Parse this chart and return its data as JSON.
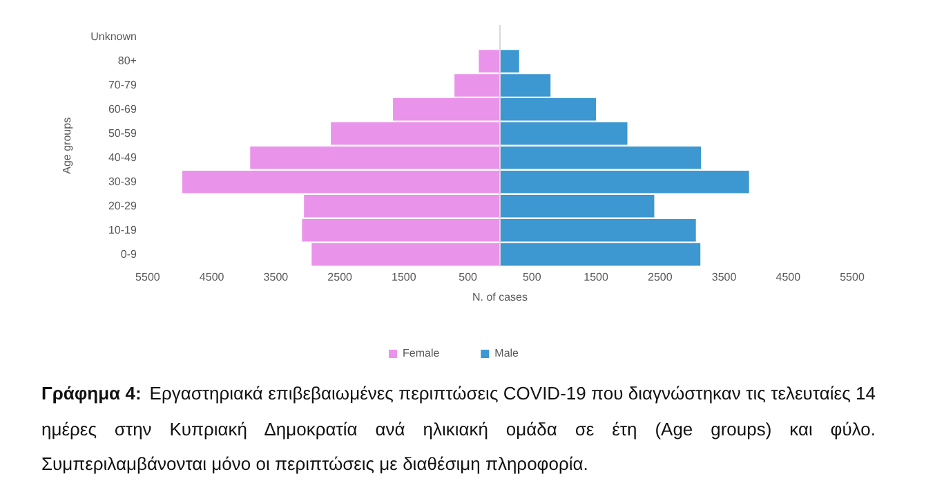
{
  "chart_data": {
    "type": "bar",
    "orientation": "horizontal",
    "stacked": true,
    "categories": [
      "Unknown",
      "80+",
      "70-79",
      "60-69",
      "50-59",
      "40-49",
      "30-39",
      "20-29",
      "10-19",
      "0-9"
    ],
    "series": [
      {
        "name": "Female",
        "color": "#ea93ea",
        "values": [
          0,
          -330,
          -710,
          -1670,
          -2640,
          -3900,
          -4960,
          -3060,
          -3090,
          -2940
        ]
      },
      {
        "name": "Male",
        "color": "#3d97d0",
        "values": [
          0,
          300,
          790,
          1500,
          1990,
          3140,
          3890,
          2410,
          3060,
          3130
        ]
      }
    ],
    "xlim": [
      -5500,
      5500
    ],
    "xticks": [
      {
        "value": -5500,
        "label": "5500"
      },
      {
        "value": -4500,
        "label": "4500"
      },
      {
        "value": -3500,
        "label": "3500"
      },
      {
        "value": -2500,
        "label": "2500"
      },
      {
        "value": -1500,
        "label": "1500"
      },
      {
        "value": -500,
        "label": "500"
      },
      500,
      1500,
      2500,
      3500,
      4500,
      5500
    ],
    "xlabel": "N. of cases",
    "ylabel": "Age groups",
    "grid": false,
    "legend": "bottom",
    "annotations": [
      "Γράφημα 4:",
      "Εργαστηριακά επιβεβαιωμένες περιπτώσεις COVID-19 που διαγνώστηκαν τις τελευταίες 14 ημέρες στην Κυπριακή Δημοκρατία ανά ηλικιακή ομάδα σε έτη (Age groups) και φύλο. Συμπεριλαμβάνονται μόνο οι περιπτώσεις με διαθέσιμη πληροφορία."
    ]
  }
}
